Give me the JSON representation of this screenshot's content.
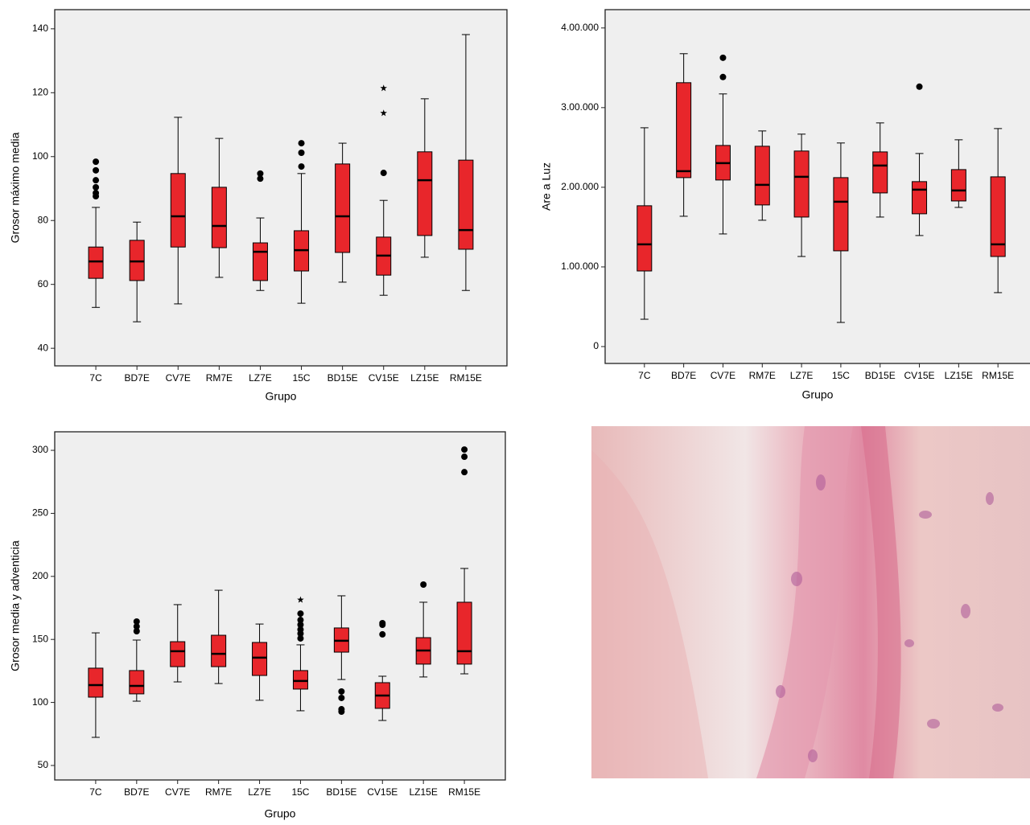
{
  "chart_data": [
    {
      "type": "box",
      "xlabel": "Grupo",
      "ylabel": "Grosor máximo media",
      "color": "#e8262b",
      "categories": [
        "7C",
        "BD7E",
        "CV7E",
        "RM7E",
        "LZ7E",
        "15C",
        "BD15E",
        "CV15E",
        "LZ15E",
        "RM15E"
      ],
      "ylim": [
        34.5,
        146
      ],
      "yticks": [
        40,
        60,
        80,
        100,
        120,
        140
      ],
      "boxes": [
        {
          "low": 52.8,
          "q1": 61.9,
          "median": 67.2,
          "q3": 71.7,
          "high": 84.1,
          "outliers": [
            98.4,
            95.7,
            92.6,
            90.4,
            88.6,
            87.6
          ],
          "extremes": []
        },
        {
          "low": 48.3,
          "q1": 61.2,
          "median": 67.2,
          "q3": 73.8,
          "high": 79.5,
          "outliers": [],
          "extremes": []
        },
        {
          "low": 53.9,
          "q1": 71.7,
          "median": 81.3,
          "q3": 94.7,
          "high": 112.3,
          "outliers": [],
          "extremes": []
        },
        {
          "low": 62.2,
          "q1": 71.5,
          "median": 78.3,
          "q3": 90.4,
          "high": 105.7,
          "outliers": [],
          "extremes": []
        },
        {
          "low": 58.1,
          "q1": 61.2,
          "median": 70.2,
          "q3": 73,
          "high": 80.8,
          "outliers": [
            94.7,
            93.1
          ],
          "extremes": []
        },
        {
          "low": 54.1,
          "q1": 64.2,
          "median": 70.7,
          "q3": 76.8,
          "high": 94.7,
          "outliers": [
            104.2,
            101.2,
            96.9
          ],
          "extremes": []
        },
        {
          "low": 60.7,
          "q1": 70,
          "median": 81.3,
          "q3": 97.7,
          "high": 104.2,
          "outliers": [],
          "extremes": []
        },
        {
          "low": 56.6,
          "q1": 62.9,
          "median": 69,
          "q3": 74.8,
          "high": 86.3,
          "outliers": [
            94.9
          ],
          "extremes": [
            121.4,
            113.6
          ]
        },
        {
          "low": 68.5,
          "q1": 75.3,
          "median": 92.6,
          "q3": 101.5,
          "high": 118.1,
          "outliers": [],
          "extremes": []
        },
        {
          "low": 58.1,
          "q1": 71,
          "median": 77,
          "q3": 98.9,
          "high": 138.2,
          "outliers": [],
          "extremes": []
        }
      ]
    },
    {
      "type": "box",
      "xlabel": "Grupo",
      "ylabel": "Are a Luz",
      "color": "#e8262b",
      "categories": [
        "7C",
        "BD7E",
        "CV7E",
        "RM7E",
        "LZ7E",
        "15C",
        "BD15E",
        "CV15E",
        "LZ15E",
        "RM15E"
      ],
      "ylim": [
        -21200,
        423000
      ],
      "yticks": [
        0,
        {
          "value": 100000,
          "label": "1.00.000"
        },
        {
          "value": 200000,
          "label": "2.00.000"
        },
        {
          "value": 300000,
          "label": "3.00.000"
        },
        {
          "value": 400000,
          "label": "4.00.000"
        }
      ],
      "boxes": [
        {
          "low": 34300,
          "q1": 94900,
          "median": 128300,
          "q3": 176800,
          "high": 274700,
          "outliers": [],
          "extremes": []
        },
        {
          "low": 163600,
          "q1": 212100,
          "median": 220200,
          "q3": 331300,
          "high": 367700,
          "outliers": [],
          "extremes": []
        },
        {
          "low": 141400,
          "q1": 209100,
          "median": 230300,
          "q3": 252500,
          "high": 317200,
          "outliers": [
            362600,
            338400
          ],
          "extremes": []
        },
        {
          "low": 158600,
          "q1": 177800,
          "median": 203000,
          "q3": 251500,
          "high": 270700,
          "outliers": [],
          "extremes": []
        },
        {
          "low": 113100,
          "q1": 162600,
          "median": 213100,
          "q3": 245500,
          "high": 266700,
          "outliers": [],
          "extremes": []
        },
        {
          "low": 30300,
          "q1": 120200,
          "median": 181800,
          "q3": 212100,
          "high": 255600,
          "outliers": [],
          "extremes": []
        },
        {
          "low": 162600,
          "q1": 192900,
          "median": 227300,
          "q3": 244400,
          "high": 280800,
          "outliers": [],
          "extremes": []
        },
        {
          "low": 139400,
          "q1": 166700,
          "median": 197000,
          "q3": 207100,
          "high": 242400,
          "outliers": [
            326300
          ],
          "extremes": []
        },
        {
          "low": 174700,
          "q1": 182800,
          "median": 196000,
          "q3": 222200,
          "high": 259600,
          "outliers": [],
          "extremes": []
        },
        {
          "low": 67700,
          "q1": 113100,
          "median": 128300,
          "q3": 213100,
          "high": 273700,
          "outliers": [],
          "extremes": []
        }
      ]
    },
    {
      "type": "box",
      "xlabel": "Grupo",
      "ylabel": "Grosor media y adventicia",
      "color": "#e8262b",
      "categories": [
        "7C",
        "BD7E",
        "CV7E",
        "RM7E",
        "LZ7E",
        "15C",
        "BD15E",
        "CV15E",
        "LZ15E",
        "RM15E"
      ],
      "ylim": [
        38.5,
        314.7
      ],
      "yticks": [
        50,
        100,
        150,
        200,
        250,
        300
      ],
      "boxes": [
        {
          "low": 72.3,
          "q1": 104.2,
          "median": 113.8,
          "q3": 127.2,
          "high": 155.2,
          "outliers": [],
          "extremes": []
        },
        {
          "low": 101,
          "q1": 106.8,
          "median": 113.1,
          "q3": 125.3,
          "high": 149.5,
          "outliers": [
            164.2,
            160.3,
            156.5
          ],
          "extremes": []
        },
        {
          "low": 116.3,
          "q1": 128.4,
          "median": 140.6,
          "q3": 148.2,
          "high": 177.6,
          "outliers": [],
          "extremes": []
        },
        {
          "low": 115,
          "q1": 128.4,
          "median": 138.6,
          "q3": 153.3,
          "high": 189,
          "outliers": [],
          "extremes": []
        },
        {
          "low": 101.7,
          "q1": 121.4,
          "median": 135.5,
          "q3": 147.6,
          "high": 162.2,
          "outliers": [],
          "extremes": []
        },
        {
          "low": 93.4,
          "q1": 110.6,
          "median": 117,
          "q3": 125.3,
          "high": 145.7,
          "outliers": [
            170.5,
            165.4,
            161.6,
            157.8,
            154.6,
            150.8
          ],
          "extremes": [
            181.4
          ]
        },
        {
          "low": 118.2,
          "q1": 139.9,
          "median": 148.9,
          "q3": 159.1,
          "high": 184.6,
          "outliers": [
            108.7,
            103.6,
            94.6,
            92.7
          ],
          "extremes": []
        },
        {
          "low": 85.7,
          "q1": 95.3,
          "median": 105.5,
          "q3": 115.7,
          "high": 120.8,
          "outliers": [
            162.9,
            161.6,
            154
          ],
          "extremes": []
        },
        {
          "low": 120.2,
          "q1": 130.4,
          "median": 141.2,
          "q3": 151.4,
          "high": 179.5,
          "outliers": [
            193.5
          ],
          "extremes": []
        },
        {
          "low": 122.7,
          "q1": 130.4,
          "median": 140.6,
          "q3": 179.5,
          "high": 206.3,
          "outliers": [
            300.6,
            294.9,
            282.7
          ],
          "extremes": []
        }
      ]
    }
  ]
}
